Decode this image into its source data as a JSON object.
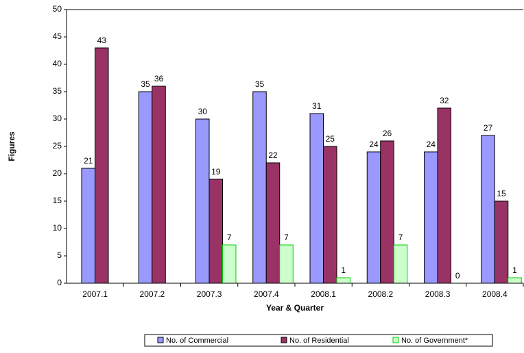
{
  "chart_data": {
    "type": "bar",
    "x_label": "Year & Quarter",
    "y_label": "Figures",
    "categories": [
      "2007.1",
      "2007.2",
      "2007.3",
      "2007.4",
      "2008.1",
      "2008.2",
      "2008.3",
      "2008.4"
    ],
    "series": [
      {
        "name": "No. of Commercial",
        "color": "#9999ff",
        "values": [
          21,
          35,
          30,
          35,
          31,
          24,
          24,
          27
        ]
      },
      {
        "name": "No. of Residential",
        "color": "#993366",
        "values": [
          43,
          36,
          19,
          22,
          25,
          26,
          32,
          15
        ]
      },
      {
        "name": "No. of Government*",
        "color": "#ccffcc",
        "values": [
          null,
          null,
          7,
          7,
          1,
          7,
          0,
          1
        ]
      }
    ],
    "ylim": [
      0,
      50
    ],
    "yticks": [
      0,
      5,
      10,
      15,
      20,
      25,
      30,
      35,
      40,
      45,
      50
    ],
    "legend": "bottom",
    "data_labels": true
  }
}
